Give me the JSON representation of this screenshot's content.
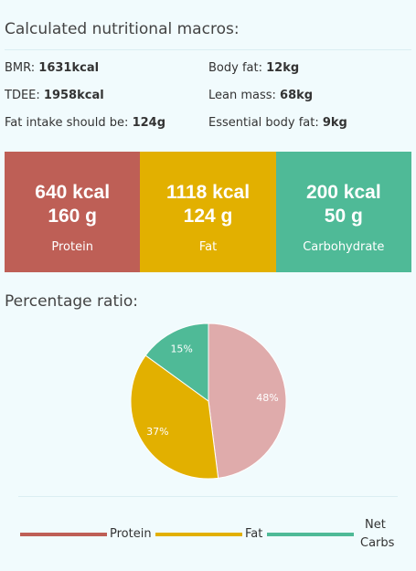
{
  "header": {
    "title": "Calculated nutritional macros:"
  },
  "stats": [
    {
      "label": "BMR: ",
      "value": "1631kcal"
    },
    {
      "label": "Body fat: ",
      "value": "12kg"
    },
    {
      "label": "TDEE: ",
      "value": "1958kcal"
    },
    {
      "label": "Lean mass: ",
      "value": "68kg"
    },
    {
      "label": "Fat intake should be: ",
      "value": "124g"
    },
    {
      "label": "Essential body fat: ",
      "value": "9kg"
    }
  ],
  "macros": [
    {
      "kcal": "640 kcal",
      "grams": "160 g",
      "name": "Protein",
      "color": "#be5f56"
    },
    {
      "kcal": "1118 kcal",
      "grams": "124 g",
      "name": "Fat",
      "color": "#e2b000"
    },
    {
      "kcal": "200 kcal",
      "grams": "50 g",
      "name": "Carbohydrate",
      "color": "#4fba97"
    }
  ],
  "ratio_title": "Percentage ratio:",
  "chart_data": {
    "type": "pie",
    "title": "",
    "slices": [
      {
        "label": "Protein",
        "value": 48,
        "text": "48%",
        "color": "#dfabab"
      },
      {
        "label": "Fat",
        "value": 37,
        "text": "37%",
        "color": "#e2b000"
      },
      {
        "label": "Net Carbs",
        "value": 15,
        "text": "15%",
        "color": "#4fba97"
      }
    ],
    "legend": [
      {
        "label": "Protein",
        "color": "#be5f56"
      },
      {
        "label": "Fat",
        "color": "#e2b000"
      },
      {
        "label": "Net",
        "label2": "Carbs",
        "color": "#4fba97"
      }
    ],
    "legend_position": "bottom"
  }
}
